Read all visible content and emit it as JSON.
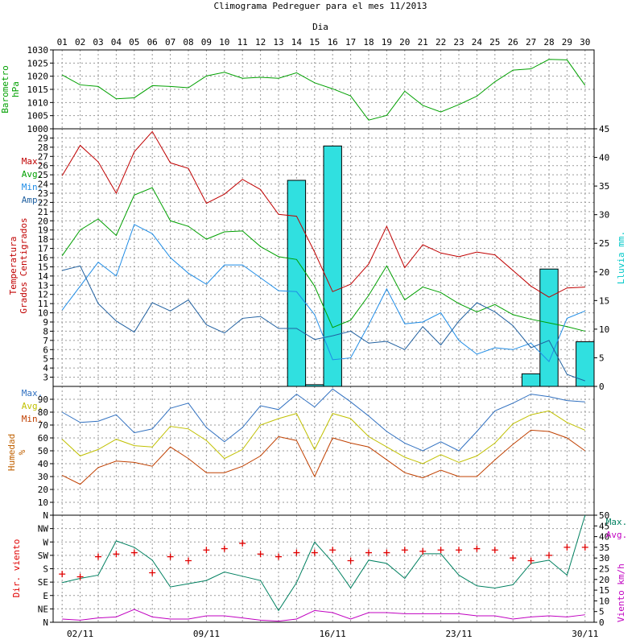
{
  "chart_data": {
    "type": "climograph",
    "title": "Climograma Pedreguer para el mes 11/2013",
    "x_axis_label": "Dia",
    "days": [
      "01",
      "02",
      "03",
      "04",
      "05",
      "06",
      "07",
      "08",
      "09",
      "10",
      "11",
      "12",
      "13",
      "14",
      "15",
      "16",
      "17",
      "18",
      "19",
      "20",
      "21",
      "22",
      "23",
      "24",
      "25",
      "26",
      "27",
      "28",
      "29",
      "30"
    ],
    "bottom_date_labels": [
      {
        "day": 2,
        "label": "02/11"
      },
      {
        "day": 9,
        "label": "09/11"
      },
      {
        "day": 16,
        "label": "16/11"
      },
      {
        "day": 23,
        "label": "23/11"
      },
      {
        "day": 30,
        "label": "30/11"
      }
    ],
    "panels": [
      {
        "id": "pressure",
        "ylabel_lines": [
          "Barometro",
          "hPa"
        ],
        "ylabel_color": "#00a000",
        "ylim": [
          1000,
          1030
        ],
        "left_ticks": [
          1000,
          1005,
          1010,
          1015,
          1020,
          1025,
          1030
        ],
        "series": [
          {
            "color": "#00a000",
            "values": [
              1020.5,
              1016.7,
              1016.1,
              1011.4,
              1011.8,
              1016.4,
              1016.1,
              1015.6,
              1020.1,
              1021.5,
              1019.2,
              1019.6,
              1019.2,
              1021.3,
              1017.5,
              1015.2,
              1012.5,
              1003.3,
              1005.1,
              1014.3,
              1008.9,
              1006.4,
              1009.2,
              1012.4,
              1017.9,
              1022.3,
              1022.8,
              1026.4,
              1026.2,
              1016.5
            ]
          }
        ]
      },
      {
        "id": "temperature",
        "ylabel_lines": [
          "Temperatura",
          "Grados Centigrados"
        ],
        "ylabel_color": "#c00000",
        "ylim": [
          2,
          30
        ],
        "left_ticks": [
          3,
          4,
          5,
          6,
          7,
          8,
          9,
          10,
          11,
          12,
          13,
          14,
          15,
          16,
          17,
          18,
          19,
          20,
          21,
          22,
          23,
          24,
          25,
          26,
          27,
          28,
          29
        ],
        "right_axis": {
          "label": "Lluvia mm.",
          "color": "#00c8c8",
          "ylim": [
            0,
            45
          ],
          "ticks": [
            0,
            5,
            10,
            15,
            20,
            25,
            30,
            35,
            40,
            45
          ]
        },
        "legend": [
          {
            "label": "Max.",
            "color": "#c00000"
          },
          {
            "label": "Avg.",
            "color": "#00a000"
          },
          {
            "label": "Min.",
            "color": "#1e8ce6"
          },
          {
            "label": "Amp.",
            "color": "#2060a0"
          }
        ],
        "rain": {
          "color": "#30e0e0",
          "values": [
            0,
            0,
            0,
            0,
            0,
            0,
            0,
            0,
            0,
            0,
            0,
            0,
            0,
            36.0,
            0.3,
            42.0,
            0,
            0,
            0,
            0,
            0,
            0,
            0,
            0,
            0,
            0,
            2.2,
            20.5,
            0,
            7.8
          ]
        },
        "series": [
          {
            "name": "Max.",
            "color": "#c00000",
            "values": [
              24.9,
              28.2,
              26.4,
              23.0,
              27.5,
              29.7,
              26.3,
              25.7,
              21.9,
              22.9,
              24.5,
              23.4,
              20.7,
              20.5,
              16.6,
              12.3,
              13.1,
              15.3,
              19.4,
              14.9,
              17.4,
              16.5,
              16.1,
              16.6,
              16.3,
              14.6,
              12.9,
              11.7,
              12.7,
              12.8
            ]
          },
          {
            "name": "Avg.",
            "color": "#00a000",
            "values": [
              16.2,
              19.0,
              20.2,
              18.4,
              22.8,
              23.6,
              20.0,
              19.4,
              18.0,
              18.8,
              18.9,
              17.2,
              16.1,
              15.8,
              12.9,
              8.4,
              9.2,
              11.9,
              15.1,
              11.4,
              12.8,
              12.2,
              11.0,
              10.1,
              10.9,
              9.8,
              9.3,
              8.9,
              8.5,
              8.0
            ]
          },
          {
            "name": "Min.",
            "color": "#1e8ce6",
            "values": [
              10.3,
              12.9,
              15.5,
              14.0,
              19.6,
              18.6,
              16.0,
              14.3,
              13.1,
              15.2,
              15.2,
              13.8,
              12.4,
              12.3,
              9.8,
              4.9,
              5.1,
              8.7,
              12.6,
              8.8,
              9.0,
              10.0,
              7.0,
              5.5,
              6.2,
              6.0,
              6.7,
              4.7,
              9.4,
              10.2
            ]
          },
          {
            "name": "Amp.",
            "color": "#2060a0",
            "values": [
              14.6,
              15.1,
              11.0,
              9.1,
              7.9,
              11.1,
              10.2,
              11.4,
              8.7,
              7.8,
              9.4,
              9.6,
              8.3,
              8.3,
              7.1,
              7.5,
              8.0,
              6.7,
              6.9,
              6.0,
              8.5,
              6.5,
              9.1,
              11.1,
              10.1,
              8.6,
              6.2,
              7.0,
              3.3,
              2.6
            ]
          }
        ]
      },
      {
        "id": "humidity",
        "ylabel_lines": [
          "Humedad",
          "%"
        ],
        "ylabel_color": "#c06000",
        "ylim": [
          0,
          100
        ],
        "left_ticks": [
          10,
          20,
          30,
          40,
          50,
          60,
          70,
          80,
          90
        ],
        "legend": [
          {
            "label": "Max.",
            "color": "#3070c0"
          },
          {
            "label": "Avg.",
            "color": "#c0c000"
          },
          {
            "label": "Min.",
            "color": "#c04000"
          }
        ],
        "series": [
          {
            "name": "Max.",
            "color": "#3070c0",
            "values": [
              80,
              72,
              73,
              78,
              64,
              67,
              83,
              87,
              68,
              57,
              68,
              85,
              82,
              94,
              84,
              98,
              88,
              77,
              65,
              56,
              50,
              57,
              50,
              65,
              81,
              87,
              94,
              92,
              89,
              88
            ]
          },
          {
            "name": "Avg.",
            "color": "#c0c000",
            "values": [
              59,
              46,
              51,
              59,
              54,
              53,
              69,
              67,
              58,
              44,
              51,
              70,
              75,
              79,
              51,
              79,
              75,
              61,
              53,
              45,
              40,
              47,
              41,
              46,
              56,
              71,
              78,
              81,
              72,
              66
            ]
          },
          {
            "name": "Min.",
            "color": "#c04000",
            "values": [
              31,
              24,
              37,
              42,
              41,
              38,
              53,
              44,
              33,
              33,
              38,
              46,
              61,
              58,
              30,
              60,
              56,
              53,
              43,
              33,
              29,
              35,
              30,
              30,
              43,
              55,
              66,
              65,
              60,
              50
            ]
          }
        ]
      },
      {
        "id": "wind",
        "ylabel_lines": [
          "Dir. viento"
        ],
        "ylabel_color": "#e00000",
        "ylim": [
          0,
          8
        ],
        "left_ticks": [
          "N",
          "NE",
          "E",
          "SE",
          "S",
          "SW",
          "W",
          "NW",
          "N"
        ],
        "right_axis": {
          "label": "Viento km/h",
          "color": "#c000c0",
          "ylim": [
            0,
            50
          ],
          "ticks": [
            0,
            5,
            10,
            15,
            20,
            25,
            30,
            35,
            40,
            45,
            50
          ]
        },
        "legend": [
          {
            "label": "Max.",
            "color": "#008060"
          },
          {
            "label": "Avg.",
            "color": "#c000c0"
          }
        ],
        "direction_marks": {
          "color": "#e00000",
          "values": [
            3.6,
            3.4,
            4.9,
            5.1,
            5.2,
            3.7,
            4.9,
            4.6,
            5.4,
            5.5,
            5.9,
            5.1,
            4.9,
            5.2,
            5.2,
            5.4,
            4.6,
            5.2,
            5.2,
            5.4,
            5.3,
            5.4,
            5.4,
            5.5,
            5.4,
            4.8,
            4.6,
            5.0,
            5.6,
            5.6
          ]
        },
        "series": [
          {
            "name": "Max.",
            "color": "#008060",
            "values": [
              18.5,
              20.5,
              22.0,
              38.0,
              35.0,
              29.0,
              16.5,
              18.0,
              19.5,
              23.5,
              21.5,
              19.5,
              5.5,
              18.5,
              37.5,
              28.0,
              16.0,
              29.0,
              27.5,
              20.5,
              32.0,
              32.0,
              22.0,
              17.0,
              16.0,
              17.5,
              27.5,
              29.0,
              22.0,
              50.0
            ]
          },
          {
            "name": "Avg.",
            "color": "#c000c0",
            "values": [
              1.5,
              1.0,
              2.0,
              2.5,
              6.0,
              2.5,
              1.5,
              1.5,
              3.0,
              3.0,
              2.0,
              1.0,
              0.5,
              1.5,
              5.5,
              4.5,
              1.5,
              4.5,
              4.5,
              4.0,
              4.0,
              4.0,
              4.0,
              3.0,
              3.0,
              1.5,
              2.5,
              3.0,
              2.5,
              3.5
            ]
          }
        ]
      }
    ]
  }
}
